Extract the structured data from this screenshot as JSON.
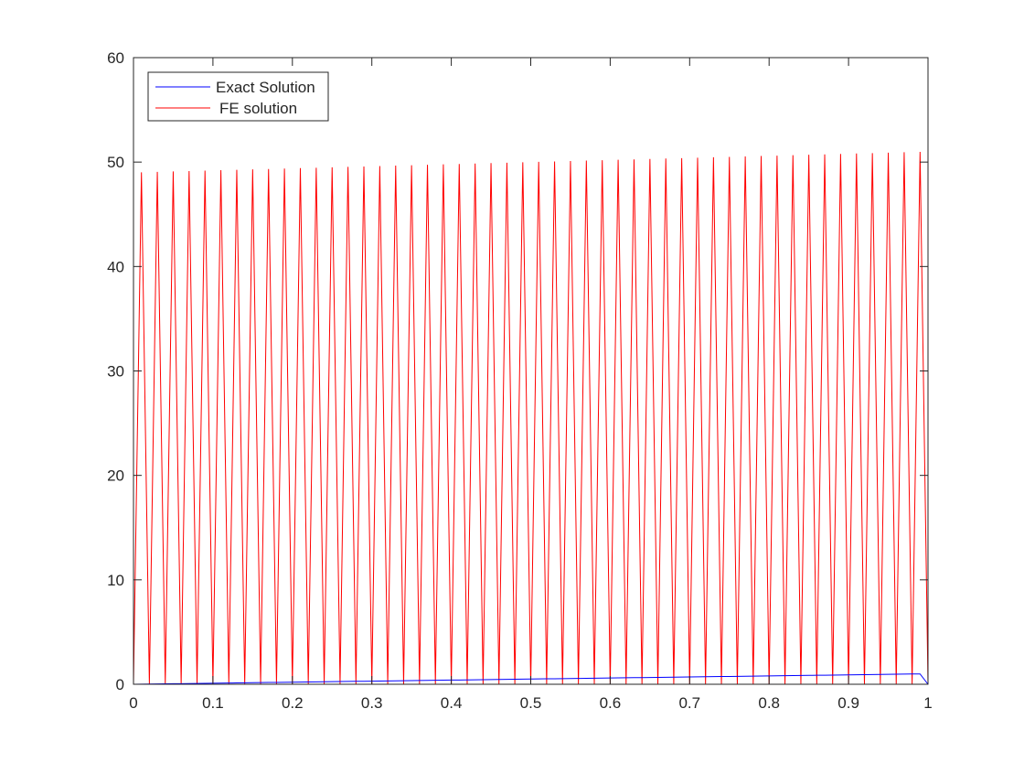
{
  "chart_data": {
    "type": "line",
    "title": "",
    "xlabel": "",
    "ylabel": "",
    "xlim": [
      0,
      1
    ],
    "ylim": [
      0,
      60
    ],
    "xticks": [
      "0",
      "0.1",
      "0.2",
      "0.3",
      "0.4",
      "0.5",
      "0.6",
      "0.7",
      "0.8",
      "0.9",
      "1"
    ],
    "yticks": [
      "0",
      "10",
      "20",
      "30",
      "40",
      "50",
      "60"
    ],
    "grid": false,
    "legend_position": "top-left",
    "x": [
      0,
      0.01,
      0.02,
      0.03,
      0.04,
      0.05,
      0.06,
      0.07,
      0.08,
      0.09,
      0.1,
      0.11,
      0.12,
      0.13,
      0.14,
      0.15,
      0.16,
      0.17,
      0.18,
      0.19,
      0.2,
      0.21,
      0.22,
      0.23,
      0.24,
      0.25,
      0.26,
      0.27,
      0.28,
      0.29,
      0.3,
      0.31,
      0.32,
      0.33,
      0.34,
      0.35,
      0.36,
      0.37,
      0.38,
      0.39,
      0.4,
      0.41,
      0.42,
      0.43,
      0.44,
      0.45,
      0.46,
      0.47,
      0.48,
      0.49,
      0.5,
      0.51,
      0.52,
      0.53,
      0.54,
      0.55,
      0.56,
      0.57,
      0.58,
      0.59,
      0.6,
      0.61,
      0.62,
      0.63,
      0.64,
      0.65,
      0.66,
      0.67,
      0.68,
      0.69,
      0.7,
      0.71,
      0.72,
      0.73,
      0.74,
      0.75,
      0.76,
      0.77,
      0.78,
      0.79,
      0.8,
      0.81,
      0.82,
      0.83,
      0.84,
      0.85,
      0.86,
      0.87,
      0.88,
      0.89,
      0.9,
      0.91,
      0.92,
      0.93,
      0.94,
      0.95,
      0.96,
      0.97,
      0.98,
      0.99,
      1
    ],
    "series": [
      {
        "name": "Exact Solution",
        "color": "#0000ff",
        "values": [
          0,
          0.01,
          0.02,
          0.03,
          0.04,
          0.05,
          0.06,
          0.07,
          0.08,
          0.09,
          0.1,
          0.11,
          0.12,
          0.13,
          0.14,
          0.15,
          0.16,
          0.17,
          0.18,
          0.19,
          0.2,
          0.21,
          0.22,
          0.23,
          0.24,
          0.25,
          0.26,
          0.27,
          0.28,
          0.29,
          0.3,
          0.31,
          0.32,
          0.33,
          0.34,
          0.35,
          0.36,
          0.37,
          0.38,
          0.39,
          0.4,
          0.41,
          0.42,
          0.43,
          0.44,
          0.45,
          0.46,
          0.47,
          0.48,
          0.49,
          0.5,
          0.51,
          0.52,
          0.53,
          0.54,
          0.55,
          0.56,
          0.57,
          0.58,
          0.59,
          0.6,
          0.61,
          0.62,
          0.63,
          0.64,
          0.65,
          0.66,
          0.67,
          0.68,
          0.69,
          0.7,
          0.71,
          0.72,
          0.73,
          0.74,
          0.75,
          0.76,
          0.77,
          0.78,
          0.79,
          0.8,
          0.81,
          0.82,
          0.83,
          0.84,
          0.85,
          0.86,
          0.87,
          0.88,
          0.89,
          0.9,
          0.91,
          0.92,
          0.93,
          0.94,
          0.95,
          0.96,
          0.97,
          0.98,
          0.99,
          0
        ]
      },
      {
        "name": "FE solution",
        "color": "#ff0000",
        "values": [
          0,
          49.02,
          0,
          49.06,
          0,
          49.1,
          0,
          49.14,
          0,
          49.18,
          0,
          49.22,
          0,
          49.26,
          0,
          49.3,
          0,
          49.34,
          0,
          49.38,
          0,
          49.42,
          0,
          49.46,
          0,
          49.5,
          0,
          49.54,
          0,
          49.58,
          0,
          49.62,
          0,
          49.66,
          0,
          49.7,
          0,
          49.74,
          0,
          49.78,
          0,
          49.82,
          0,
          49.86,
          0,
          49.9,
          0,
          49.94,
          0,
          49.98,
          0,
          50.02,
          0,
          50.06,
          0,
          50.1,
          0,
          50.14,
          0,
          50.18,
          0,
          50.22,
          0,
          50.26,
          0,
          50.3,
          0,
          50.34,
          0,
          50.38,
          0,
          50.42,
          0,
          50.46,
          0,
          50.5,
          0,
          50.54,
          0,
          50.58,
          0,
          50.62,
          0,
          50.66,
          0,
          50.7,
          0,
          50.74,
          0,
          50.78,
          0,
          50.82,
          0,
          50.86,
          0,
          50.9,
          0,
          50.94,
          0,
          50.98,
          0
        ]
      }
    ]
  }
}
